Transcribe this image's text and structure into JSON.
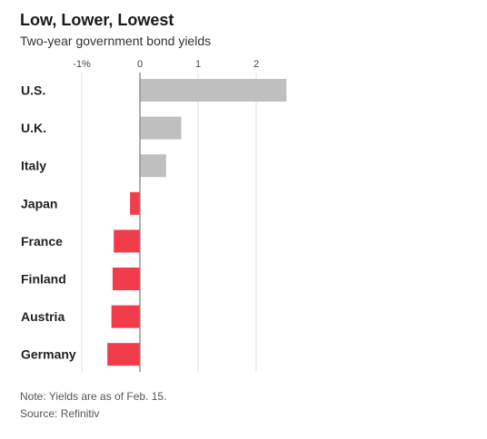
{
  "header": {
    "title": "Low, Lower, Lowest",
    "subtitle": "Two-year government bond yields"
  },
  "footer": {
    "note": "Note: Yields are as of Feb. 15.",
    "source": "Source: Refinitiv"
  },
  "colors": {
    "positive": "#bfbfbf",
    "negative": "#f03c4b",
    "grid": "#e2e2e2",
    "zero_line": "#888888"
  },
  "chart_data": {
    "type": "bar",
    "orientation": "horizontal",
    "title": "Low, Lower, Lowest",
    "subtitle": "Two-year government bond yields",
    "categories": [
      "U.S.",
      "U.K.",
      "Italy",
      "Japan",
      "France",
      "Finland",
      "Austria",
      "Germany"
    ],
    "values": [
      2.52,
      0.71,
      0.45,
      -0.17,
      -0.45,
      -0.47,
      -0.49,
      -0.56
    ],
    "xlim": [
      -1,
      2.6
    ],
    "xticks": [
      -1,
      0,
      1,
      2
    ],
    "xtick_labels": [
      "-1%",
      "0",
      "1",
      "2"
    ],
    "grid": true,
    "xlabel": "",
    "ylabel": ""
  }
}
